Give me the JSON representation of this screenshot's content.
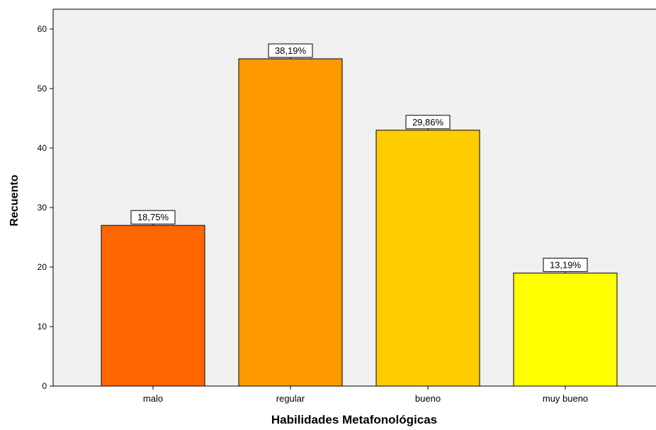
{
  "chart_data": {
    "type": "bar",
    "title": "",
    "xlabel": "Habilidades Metafonológicas",
    "ylabel": "Recuento",
    "categories": [
      "malo",
      "regular",
      "bueno",
      "muy bueno"
    ],
    "values": [
      27,
      55,
      43,
      19
    ],
    "data_labels": [
      "18,75%",
      "38,19%",
      "29,86%",
      "13,19%"
    ],
    "bar_colors": [
      "#ff6600",
      "#ff9900",
      "#ffcc00",
      "#ffff00"
    ],
    "plot_background": "#f0f0f0",
    "ylim": [
      0,
      60
    ],
    "yticks": [
      "0",
      "10",
      "20",
      "30",
      "40",
      "50",
      "60"
    ],
    "grid": false,
    "legend": "none"
  }
}
